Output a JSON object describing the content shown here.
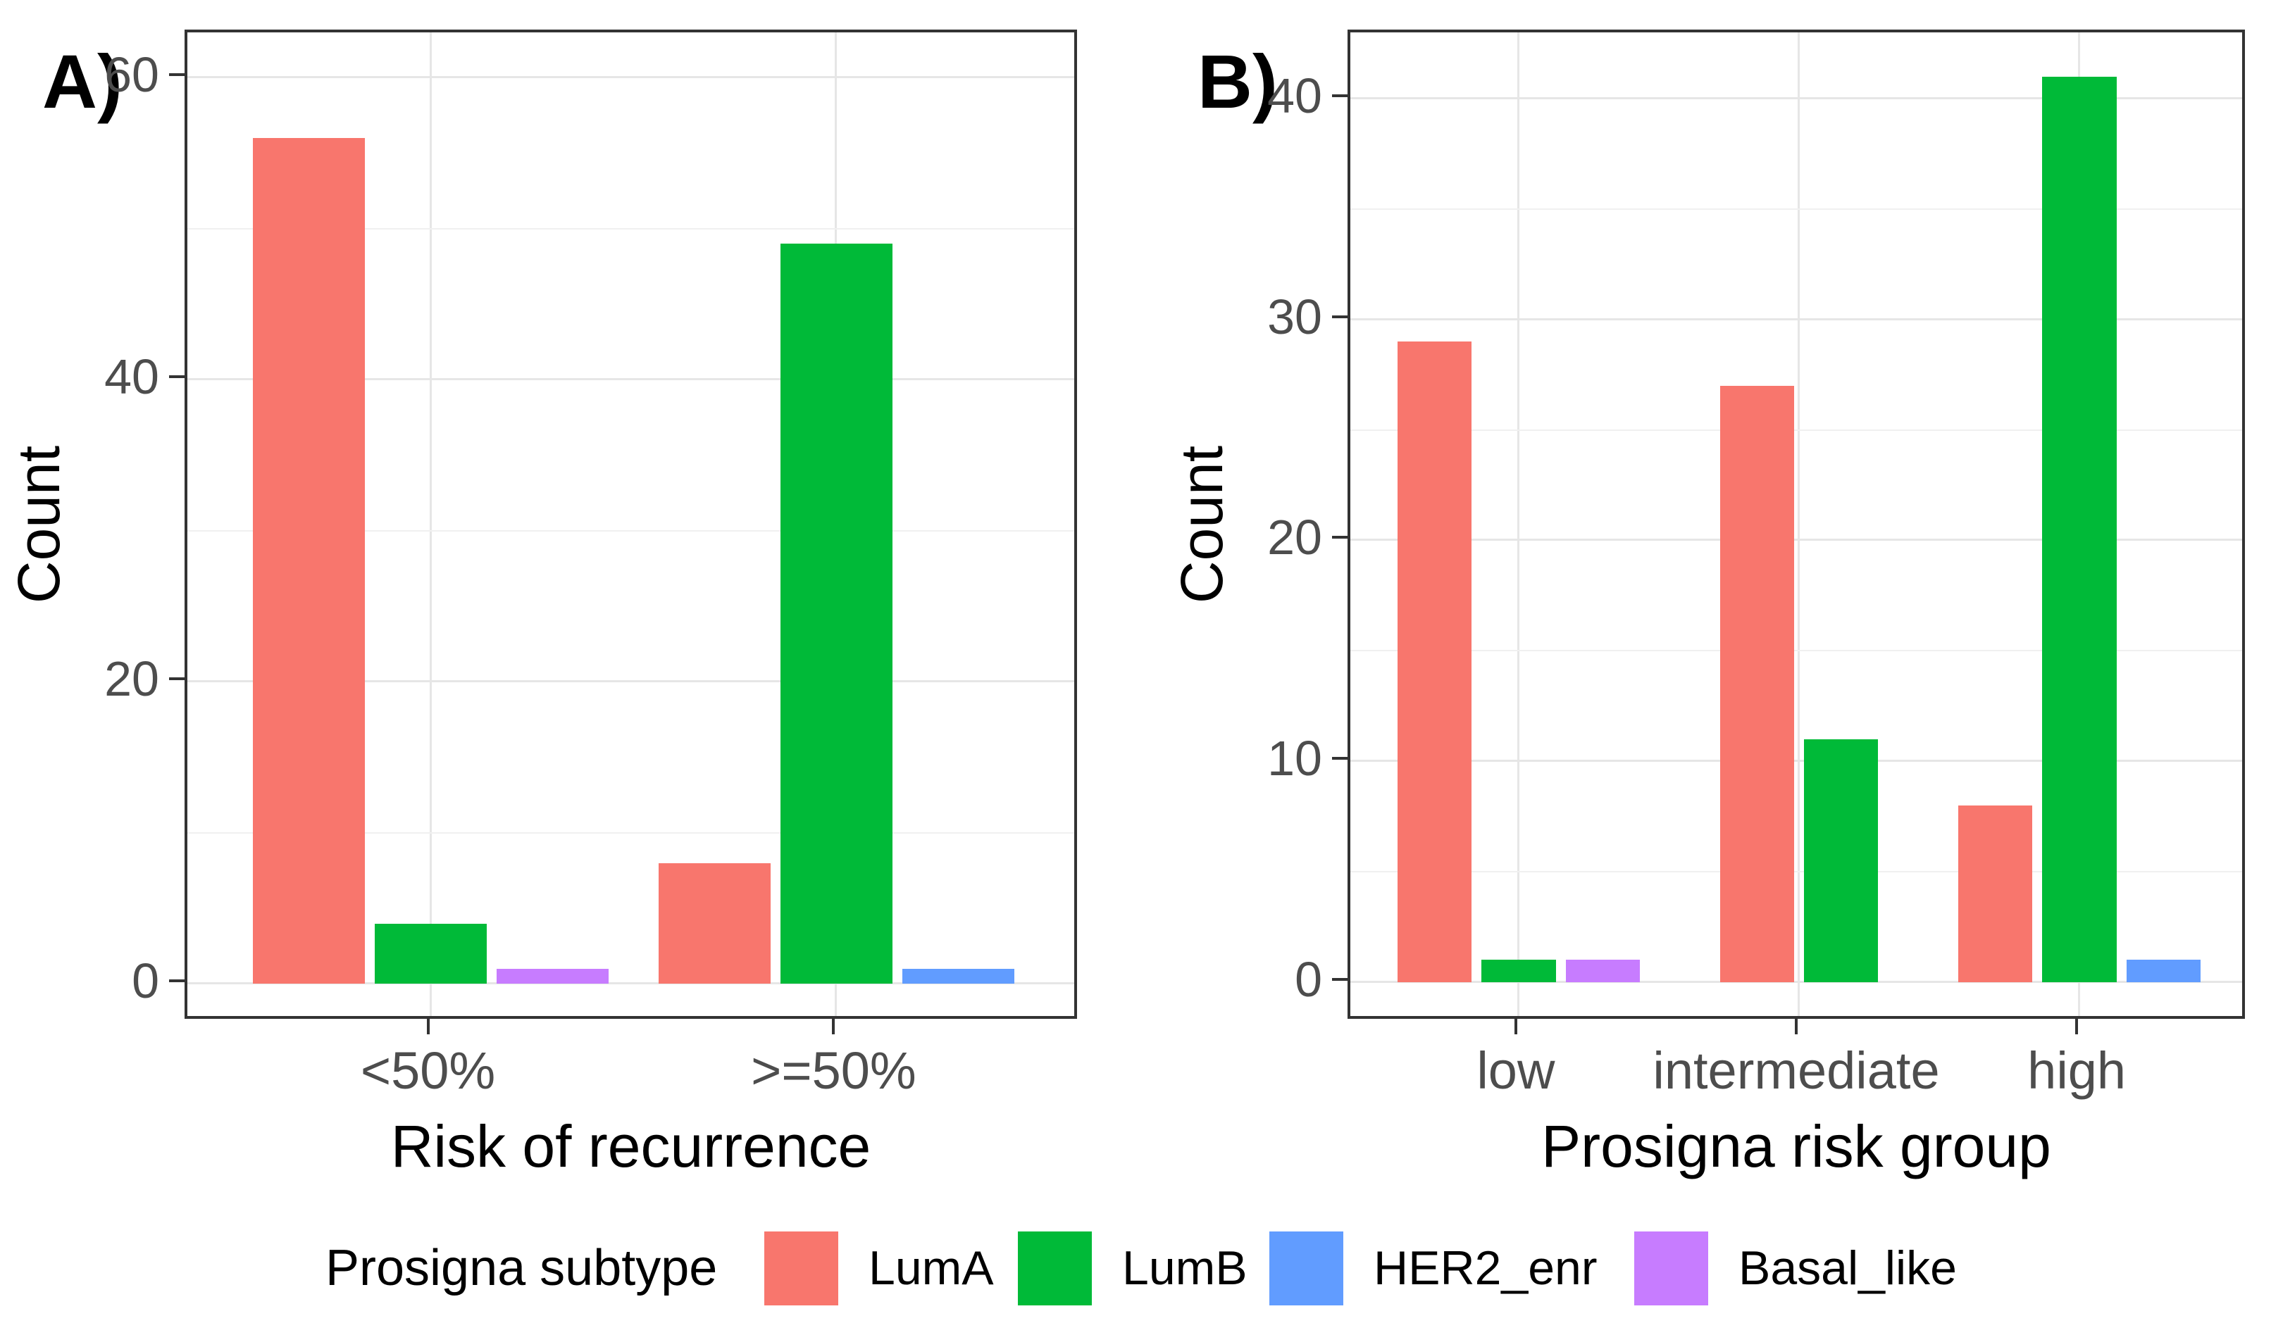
{
  "chart_data": [
    {
      "type": "bar",
      "panel_tag": "A)",
      "xlabel": "Risk of recurrence",
      "ylabel": "Count",
      "categories": [
        "<50%",
        ">=50%"
      ],
      "series": [
        {
          "name": "LumA",
          "color": "#F8766D",
          "values": [
            56,
            8
          ]
        },
        {
          "name": "LumB",
          "color": "#00BA38",
          "values": [
            4,
            49
          ]
        },
        {
          "name": "HER2_enr",
          "color": "#619CFF",
          "values": [
            null,
            1
          ]
        },
        {
          "name": "Basal_like",
          "color": "#C77CFF",
          "values": [
            1,
            null
          ]
        }
      ],
      "yticks": [
        0,
        20,
        40,
        60
      ],
      "yminor": [
        10,
        30,
        50
      ],
      "ylim": [
        -2.5,
        63
      ],
      "grid": true,
      "legend_position": "shared-bottom"
    },
    {
      "type": "bar",
      "panel_tag": "B)",
      "xlabel": "Prosigna risk group",
      "ylabel": "Count",
      "categories": [
        "low",
        "intermediate",
        "high"
      ],
      "series": [
        {
          "name": "LumA",
          "color": "#F8766D",
          "values": [
            29,
            27,
            8
          ]
        },
        {
          "name": "LumB",
          "color": "#00BA38",
          "values": [
            1,
            11,
            41
          ]
        },
        {
          "name": "HER2_enr",
          "color": "#619CFF",
          "values": [
            null,
            null,
            1
          ]
        },
        {
          "name": "Basal_like",
          "color": "#C77CFF",
          "values": [
            1,
            null,
            null
          ]
        }
      ],
      "yticks": [
        0,
        10,
        20,
        30,
        40
      ],
      "yminor": [
        5,
        15,
        25,
        35
      ],
      "ylim": [
        -1.8,
        43
      ],
      "grid": true,
      "legend_position": "shared-bottom"
    }
  ],
  "legend": {
    "title": "Prosigna subtype",
    "items": [
      {
        "label": "LumA",
        "color": "#F8766D"
      },
      {
        "label": "LumB",
        "color": "#00BA38"
      },
      {
        "label": "HER2_enr",
        "color": "#619CFF"
      },
      {
        "label": "Basal_like",
        "color": "#C77CFF"
      }
    ]
  }
}
